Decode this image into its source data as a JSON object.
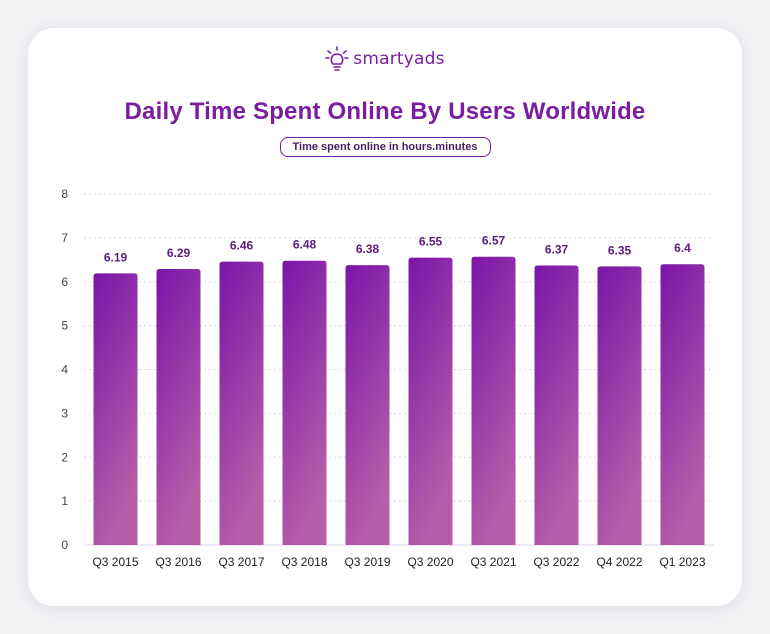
{
  "brand": {
    "name": "smartyads",
    "logo_icon": "lightbulb-icon",
    "color": "#7a1ea1"
  },
  "chart_data": {
    "type": "bar",
    "title": "Daily Time Spent Online By Users Worldwide",
    "subtitle": "Time spent online in hours.minutes",
    "categories": [
      "Q3 2015",
      "Q3 2016",
      "Q3 2017",
      "Q3 2018",
      "Q3 2019",
      "Q3 2020",
      "Q3 2021",
      "Q3 2022",
      "Q4 2022",
      "Q1 2023"
    ],
    "values": [
      6.19,
      6.29,
      6.46,
      6.48,
      6.38,
      6.55,
      6.57,
      6.37,
      6.35,
      6.4
    ],
    "value_labels": [
      "6.19",
      "6.29",
      "6.46",
      "6.48",
      "6.38",
      "6.55",
      "6.57",
      "6.37",
      "6.35",
      "6.4"
    ],
    "ylim": [
      0,
      8
    ],
    "yticks": [
      0,
      1,
      2,
      3,
      4,
      5,
      6,
      7,
      8
    ],
    "grid": true,
    "xlabel": "",
    "ylabel": "",
    "colors": {
      "bar_top": "#7a15a8",
      "bar_bottom": "#b65ea9",
      "grid": "#d9d4e0"
    }
  }
}
